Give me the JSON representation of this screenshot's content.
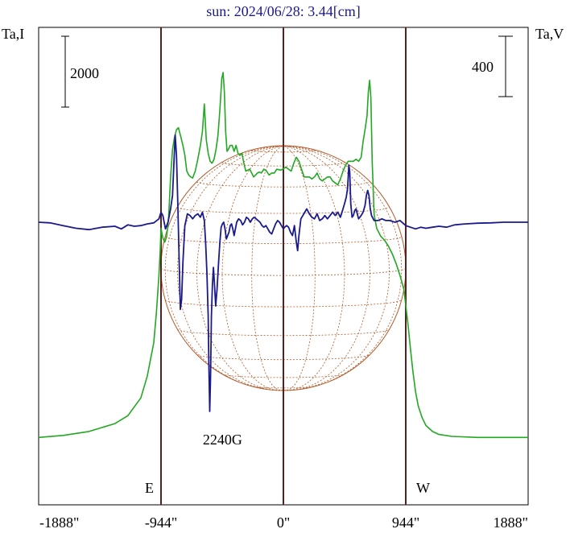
{
  "chart_data": {
    "type": "line",
    "title": "sun: 2024/06/28: 3.44[cm]",
    "left_axis_label": "Ta,I",
    "right_axis_label": "Ta,V",
    "left_scale_bar": "2000",
    "right_scale_bar": "400",
    "x_unit": "arcsec",
    "x_ticks": [
      {
        "value": -1888,
        "label": "-1888\""
      },
      {
        "value": -944,
        "label": "-944\""
      },
      {
        "value": 0,
        "label": "0\""
      },
      {
        "value": 944,
        "label": "944\""
      },
      {
        "value": 1888,
        "label": "1888\""
      }
    ],
    "xlim": [
      -1888,
      1888
    ],
    "vertical_lines": [
      -944,
      0,
      944
    ],
    "limb_labels": {
      "east": "E",
      "west": "W"
    },
    "annotation": {
      "text": "2240G",
      "x": -470
    },
    "solar_disk_radius_arcsec": 944,
    "colors": {
      "intensity": "#22a822",
      "polarization": "#1a1a8c",
      "disk": "#b25a2a",
      "vlines": "#5a1f1f"
    },
    "series": [
      {
        "key": "intensity",
        "ylim": [
          0,
          20000
        ],
        "points": [
          [
            -1888,
            1500
          ],
          [
            -1700,
            1600
          ],
          [
            -1500,
            1800
          ],
          [
            -1300,
            2200
          ],
          [
            -1200,
            2600
          ],
          [
            -1100,
            3500
          ],
          [
            -1050,
            4600
          ],
          [
            -1000,
            6300
          ],
          [
            -980,
            7800
          ],
          [
            -960,
            9700
          ],
          [
            -950,
            11000
          ],
          [
            -944,
            12100
          ],
          [
            -930,
            11600
          ],
          [
            -915,
            11400
          ],
          [
            -900,
            11700
          ],
          [
            -885,
            12700
          ],
          [
            -870,
            14700
          ],
          [
            -855,
            16100
          ],
          [
            -840,
            16700
          ],
          [
            -825,
            17100
          ],
          [
            -810,
            17200
          ],
          [
            -790,
            16700
          ],
          [
            -775,
            16300
          ],
          [
            -760,
            15800
          ],
          [
            -745,
            15000
          ],
          [
            -730,
            14800
          ],
          [
            -715,
            14700
          ],
          [
            -700,
            14650
          ],
          [
            -680,
            15000
          ],
          [
            -660,
            15600
          ],
          [
            -640,
            16300
          ],
          [
            -625,
            17000
          ],
          [
            -610,
            18400
          ],
          [
            -595,
            16600
          ],
          [
            -580,
            15900
          ],
          [
            -565,
            15500
          ],
          [
            -550,
            15400
          ],
          [
            -535,
            15600
          ],
          [
            -520,
            16100
          ],
          [
            -505,
            16800
          ],
          [
            -490,
            18100
          ],
          [
            -475,
            19700
          ],
          [
            -465,
            20000
          ],
          [
            -455,
            19000
          ],
          [
            -445,
            17000
          ],
          [
            -435,
            16000
          ],
          [
            -425,
            16100
          ],
          [
            -410,
            16300
          ],
          [
            -395,
            16300
          ],
          [
            -380,
            16000
          ],
          [
            -365,
            16300
          ],
          [
            -350,
            15900
          ],
          [
            -335,
            15800
          ],
          [
            -320,
            15900
          ],
          [
            -305,
            15400
          ],
          [
            -290,
            15000
          ],
          [
            -275,
            15050
          ],
          [
            -260,
            15100
          ],
          [
            -245,
            14900
          ],
          [
            -230,
            14700
          ],
          [
            -215,
            14800
          ],
          [
            -200,
            14900
          ],
          [
            -185,
            14950
          ],
          [
            -170,
            14900
          ],
          [
            -150,
            15100
          ],
          [
            -130,
            15000
          ],
          [
            -110,
            14800
          ],
          [
            -90,
            14900
          ],
          [
            -70,
            14900
          ],
          [
            -50,
            15100
          ],
          [
            -20,
            15050
          ],
          [
            20,
            15200
          ],
          [
            40,
            15100
          ],
          [
            60,
            15000
          ],
          [
            80,
            15400
          ],
          [
            100,
            15700
          ],
          [
            120,
            15500
          ],
          [
            140,
            15100
          ],
          [
            160,
            14700
          ],
          [
            180,
            14700
          ],
          [
            200,
            14700
          ],
          [
            220,
            14600
          ],
          [
            240,
            14700
          ],
          [
            260,
            14900
          ],
          [
            280,
            14600
          ],
          [
            300,
            14500
          ],
          [
            320,
            14600
          ],
          [
            340,
            14700
          ],
          [
            360,
            14700
          ],
          [
            380,
            14500
          ],
          [
            400,
            14400
          ],
          [
            420,
            14300
          ],
          [
            440,
            14600
          ],
          [
            460,
            15000
          ],
          [
            480,
            15300
          ],
          [
            500,
            15500
          ],
          [
            520,
            15500
          ],
          [
            540,
            15500
          ],
          [
            560,
            15600
          ],
          [
            580,
            15500
          ],
          [
            600,
            15700
          ],
          [
            615,
            16500
          ],
          [
            630,
            17100
          ],
          [
            645,
            17800
          ],
          [
            655,
            19000
          ],
          [
            665,
            19600
          ],
          [
            675,
            18700
          ],
          [
            685,
            15500
          ],
          [
            700,
            12800
          ],
          [
            720,
            12100
          ],
          [
            750,
            11700
          ],
          [
            780,
            11500
          ],
          [
            810,
            11200
          ],
          [
            840,
            10800
          ],
          [
            870,
            10300
          ],
          [
            900,
            9700
          ],
          [
            930,
            9000
          ],
          [
            944,
            8200
          ],
          [
            960,
            7300
          ],
          [
            980,
            6000
          ],
          [
            1000,
            4800
          ],
          [
            1020,
            3800
          ],
          [
            1040,
            3100
          ],
          [
            1070,
            2500
          ],
          [
            1100,
            2100
          ],
          [
            1150,
            1800
          ],
          [
            1200,
            1650
          ],
          [
            1300,
            1550
          ],
          [
            1500,
            1500
          ],
          [
            1700,
            1500
          ],
          [
            1888,
            1500
          ]
        ]
      },
      {
        "key": "polarization",
        "ylim": [
          -750,
          400
        ],
        "points": [
          [
            -1888,
            0
          ],
          [
            -1800,
            -2
          ],
          [
            -1700,
            -10
          ],
          [
            -1600,
            -18
          ],
          [
            -1500,
            -22
          ],
          [
            -1400,
            -15
          ],
          [
            -1300,
            -12
          ],
          [
            -1250,
            -20
          ],
          [
            -1200,
            -8
          ],
          [
            -1150,
            -12
          ],
          [
            -1100,
            -10
          ],
          [
            -1050,
            -5
          ],
          [
            -1000,
            -2
          ],
          [
            -960,
            10
          ],
          [
            -944,
            30
          ],
          [
            -930,
            20
          ],
          [
            -910,
            -20
          ],
          [
            -890,
            0
          ],
          [
            -870,
            40
          ],
          [
            -855,
            80
          ],
          [
            -845,
            170
          ],
          [
            -835,
            260
          ],
          [
            -825,
            200
          ],
          [
            -815,
            60
          ],
          [
            -805,
            -100
          ],
          [
            -795,
            -260
          ],
          [
            -785,
            -230
          ],
          [
            -775,
            -120
          ],
          [
            -760,
            -10
          ],
          [
            -740,
            25
          ],
          [
            -720,
            20
          ],
          [
            -700,
            10
          ],
          [
            -680,
            20
          ],
          [
            -660,
            25
          ],
          [
            -640,
            15
          ],
          [
            -625,
            30
          ],
          [
            -610,
            5
          ],
          [
            -600,
            -60
          ],
          [
            -590,
            -150
          ],
          [
            -580,
            -280
          ],
          [
            -575,
            -420
          ],
          [
            -568,
            -565
          ],
          [
            -562,
            -465
          ],
          [
            -555,
            -280
          ],
          [
            -548,
            -190
          ],
          [
            -540,
            -135
          ],
          [
            -532,
            -180
          ],
          [
            -522,
            -250
          ],
          [
            -512,
            -200
          ],
          [
            -500,
            -120
          ],
          [
            -490,
            -60
          ],
          [
            -480,
            -15
          ],
          [
            -470,
            -5
          ],
          [
            -460,
            0
          ],
          [
            -450,
            -20
          ],
          [
            -440,
            -50
          ],
          [
            -430,
            -40
          ],
          [
            -420,
            -30
          ],
          [
            -410,
            -10
          ],
          [
            -400,
            -5
          ],
          [
            -390,
            -20
          ],
          [
            -380,
            -40
          ],
          [
            -370,
            -20
          ],
          [
            -360,
            0
          ],
          [
            -345,
            10
          ],
          [
            -330,
            5
          ],
          [
            -315,
            -8
          ],
          [
            -300,
            0
          ],
          [
            -285,
            15
          ],
          [
            -270,
            10
          ],
          [
            -255,
            0
          ],
          [
            -240,
            10
          ],
          [
            -225,
            15
          ],
          [
            -210,
            10
          ],
          [
            -195,
            5
          ],
          [
            -180,
            0
          ],
          [
            -165,
            -10
          ],
          [
            -150,
            -15
          ],
          [
            -135,
            -10
          ],
          [
            -120,
            -20
          ],
          [
            -105,
            -30
          ],
          [
            -90,
            -35
          ],
          [
            -75,
            -20
          ],
          [
            -60,
            -5
          ],
          [
            -45,
            5
          ],
          [
            -30,
            0
          ],
          [
            -15,
            -10
          ],
          [
            0,
            -20
          ],
          [
            10,
            -15
          ],
          [
            25,
            -10
          ],
          [
            40,
            -15
          ],
          [
            55,
            -30
          ],
          [
            70,
            -40
          ],
          [
            85,
            -10
          ],
          [
            100,
            -60
          ],
          [
            110,
            -85
          ],
          [
            120,
            -40
          ],
          [
            135,
            10
          ],
          [
            150,
            20
          ],
          [
            165,
            30
          ],
          [
            180,
            40
          ],
          [
            200,
            25
          ],
          [
            220,
            15
          ],
          [
            240,
            10
          ],
          [
            260,
            25
          ],
          [
            280,
            5
          ],
          [
            300,
            10
          ],
          [
            320,
            20
          ],
          [
            340,
            10
          ],
          [
            360,
            20
          ],
          [
            380,
            30
          ],
          [
            400,
            20
          ],
          [
            420,
            30
          ],
          [
            440,
            15
          ],
          [
            460,
            40
          ],
          [
            475,
            60
          ],
          [
            485,
            75
          ],
          [
            495,
            100
          ],
          [
            505,
            170
          ],
          [
            512,
            150
          ],
          [
            520,
            55
          ],
          [
            530,
            15
          ],
          [
            540,
            20
          ],
          [
            550,
            35
          ],
          [
            560,
            40
          ],
          [
            570,
            25
          ],
          [
            580,
            10
          ],
          [
            590,
            15
          ],
          [
            600,
            20
          ],
          [
            615,
            30
          ],
          [
            630,
            50
          ],
          [
            640,
            80
          ],
          [
            650,
            95
          ],
          [
            660,
            80
          ],
          [
            670,
            40
          ],
          [
            680,
            20
          ],
          [
            700,
            5
          ],
          [
            730,
            5
          ],
          [
            760,
            10
          ],
          [
            790,
            5
          ],
          [
            820,
            5
          ],
          [
            860,
            0
          ],
          [
            900,
            5
          ],
          [
            944,
            -10
          ],
          [
            980,
            -15
          ],
          [
            1020,
            -20
          ],
          [
            1060,
            -15
          ],
          [
            1100,
            -18
          ],
          [
            1150,
            -15
          ],
          [
            1200,
            -12
          ],
          [
            1260,
            -15
          ],
          [
            1320,
            -8
          ],
          [
            1400,
            -5
          ],
          [
            1500,
            -3
          ],
          [
            1600,
            -2
          ],
          [
            1700,
            0
          ],
          [
            1888,
            0
          ]
        ]
      }
    ]
  }
}
